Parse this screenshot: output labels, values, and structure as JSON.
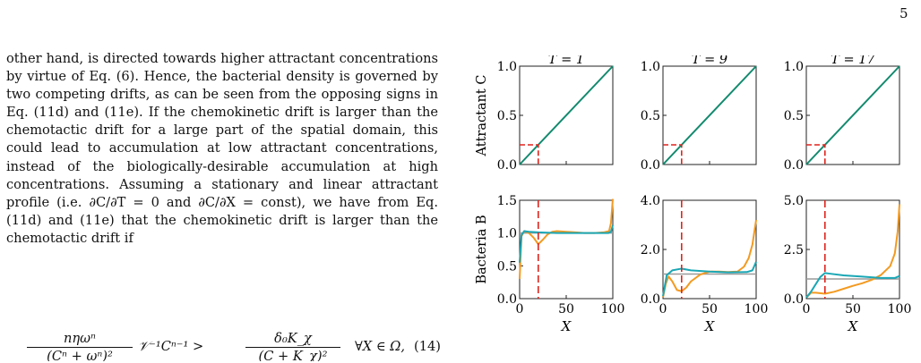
{
  "page_number": "5",
  "body_paragraph": "other hand, is directed towards higher attractant concentrations by virtue of Eq. (6). Hence, the bacterial density is governed by two competing drifts, as can be seen from the opposing signs in Eq. (11d) and (11e). If the chemokinetic drift is larger than the chemotactic drift for a large part of the spatial domain, this could lead to accumulation at low attractant concentrations, instead of the biologically-desirable accumulation at high concentrations. Assuming a stationary and linear attractant profile (i.e. ∂C/∂T = 0 and ∂C/∂X = const), we have from Eq. (11d) and (11e) that the chemokinetic drift is larger than the chemotactic drift if",
  "equation": {
    "lhs_num": "nηωⁿ",
    "lhs_den": "(Cⁿ + ωⁿ)²",
    "middle": "𝒱⁻¹Cⁿ⁻¹ >",
    "rhs_num": "δ₀K_χ",
    "rhs_den": "(C + K_χ)²",
    "condition": "∀X ∈ Ω,",
    "number": "(14)"
  },
  "figure": {
    "column_titles": [
      "T = 1",
      "T = 9",
      "T = 17"
    ],
    "row_labels": [
      "Attractant C",
      "Bacteria B"
    ],
    "xlabel": "X",
    "colors": {
      "attractant": "#128a6e",
      "orange": "#f39a21",
      "teal": "#1aa7b5",
      "gray": "#9a9a9a",
      "marker": "#e0241d"
    }
  },
  "chart_data": [
    {
      "type": "line",
      "title": "T = 1",
      "ylabel": "Attractant C",
      "xlim": [
        0,
        100
      ],
      "ylim": [
        0,
        1
      ],
      "xticks": [
        "0",
        "50",
        "100"
      ],
      "yticks": [
        "0.0",
        "0.5",
        "1.0"
      ],
      "x_tick_labels_shown": false,
      "series": [
        {
          "values": [
            [
              0,
              0
            ],
            [
              100,
              1
            ]
          ]
        }
      ],
      "marker": {
        "x": 20,
        "y": 0.2
      }
    },
    {
      "type": "line",
      "title": "T = 9",
      "xlim": [
        0,
        100
      ],
      "ylim": [
        0,
        1
      ],
      "xticks": [
        "0",
        "50",
        "100"
      ],
      "yticks": [
        "0.0",
        "0.5",
        "1.0"
      ],
      "x_tick_labels_shown": false,
      "series": [
        {
          "values": [
            [
              0,
              0
            ],
            [
              100,
              1
            ]
          ]
        }
      ],
      "marker": {
        "x": 20,
        "y": 0.2
      }
    },
    {
      "type": "line",
      "title": "T = 17",
      "xlim": [
        0,
        100
      ],
      "ylim": [
        0,
        1
      ],
      "xticks": [
        "0",
        "50",
        "100"
      ],
      "yticks": [
        "0.0",
        "0.5",
        "1.0"
      ],
      "x_tick_labels_shown": false,
      "series": [
        {
          "values": [
            [
              0,
              0
            ],
            [
              100,
              1
            ]
          ]
        }
      ],
      "marker": {
        "x": 20,
        "y": 0.2
      }
    },
    {
      "type": "line",
      "ylabel": "Bacteria B",
      "xlabel": "X",
      "xlim": [
        0,
        100
      ],
      "ylim": [
        0,
        1.5
      ],
      "xticks": [
        "0",
        "50",
        "100"
      ],
      "yticks": [
        "0.0",
        "0.5",
        "1.0",
        "1.5"
      ],
      "baseline": 1.0,
      "marker_x": 20,
      "series": [
        {
          "color": "orange",
          "values": [
            [
              0,
              0.3
            ],
            [
              2,
              0.95
            ],
            [
              5,
              1.03
            ],
            [
              10,
              1.0
            ],
            [
              15,
              0.93
            ],
            [
              20,
              0.83
            ],
            [
              25,
              0.9
            ],
            [
              30,
              0.98
            ],
            [
              35,
              1.02
            ],
            [
              40,
              1.03
            ],
            [
              50,
              1.02
            ],
            [
              60,
              1.01
            ],
            [
              70,
              1.0
            ],
            [
              80,
              1.0
            ],
            [
              90,
              1.01
            ],
            [
              96,
              1.03
            ],
            [
              98,
              1.15
            ],
            [
              100,
              1.52
            ]
          ]
        },
        {
          "color": "teal",
          "values": [
            [
              0,
              0.55
            ],
            [
              2,
              0.97
            ],
            [
              5,
              1.03
            ],
            [
              10,
              1.02
            ],
            [
              20,
              1.01
            ],
            [
              40,
              1.0
            ],
            [
              60,
              1.0
            ],
            [
              80,
              1.0
            ],
            [
              95,
              1.0
            ],
            [
              98,
              1.02
            ],
            [
              100,
              1.12
            ]
          ]
        }
      ]
    },
    {
      "type": "line",
      "xlabel": "X",
      "xlim": [
        0,
        100
      ],
      "ylim": [
        0,
        4
      ],
      "xticks": [
        "0",
        "50",
        "100"
      ],
      "yticks": [
        "0.0",
        "2.0",
        "4.0"
      ],
      "baseline": 1.0,
      "marker_x": 20,
      "series": [
        {
          "color": "orange",
          "values": [
            [
              0,
              0.05
            ],
            [
              3,
              0.6
            ],
            [
              6,
              0.9
            ],
            [
              10,
              0.7
            ],
            [
              15,
              0.35
            ],
            [
              20,
              0.3
            ],
            [
              25,
              0.45
            ],
            [
              30,
              0.7
            ],
            [
              40,
              0.98
            ],
            [
              50,
              1.1
            ],
            [
              60,
              1.1
            ],
            [
              70,
              1.08
            ],
            [
              80,
              1.1
            ],
            [
              87,
              1.3
            ],
            [
              92,
              1.65
            ],
            [
              96,
              2.2
            ],
            [
              100,
              3.2
            ]
          ]
        },
        {
          "color": "teal",
          "values": [
            [
              0,
              0.1
            ],
            [
              4,
              0.95
            ],
            [
              10,
              1.15
            ],
            [
              20,
              1.22
            ],
            [
              30,
              1.15
            ],
            [
              50,
              1.1
            ],
            [
              70,
              1.07
            ],
            [
              90,
              1.08
            ],
            [
              96,
              1.15
            ],
            [
              100,
              1.5
            ]
          ]
        }
      ]
    },
    {
      "type": "line",
      "xlabel": "X",
      "xlim": [
        0,
        100
      ],
      "ylim": [
        0,
        5
      ],
      "xticks": [
        "0",
        "50",
        "100"
      ],
      "yticks": [
        "0.0",
        "2.5",
        "5.0"
      ],
      "baseline": 1.0,
      "marker_x": 20,
      "series": [
        {
          "color": "orange",
          "values": [
            [
              0,
              0.05
            ],
            [
              5,
              0.3
            ],
            [
              10,
              0.3
            ],
            [
              20,
              0.25
            ],
            [
              30,
              0.35
            ],
            [
              40,
              0.5
            ],
            [
              50,
              0.65
            ],
            [
              60,
              0.78
            ],
            [
              70,
              0.95
            ],
            [
              80,
              1.2
            ],
            [
              90,
              1.65
            ],
            [
              95,
              2.3
            ],
            [
              98,
              3.4
            ],
            [
              100,
              4.8
            ]
          ]
        },
        {
          "color": "teal",
          "values": [
            [
              0,
              0.05
            ],
            [
              5,
              0.35
            ],
            [
              15,
              1.1
            ],
            [
              20,
              1.3
            ],
            [
              25,
              1.27
            ],
            [
              40,
              1.18
            ],
            [
              60,
              1.12
            ],
            [
              80,
              1.05
            ],
            [
              95,
              1.05
            ],
            [
              100,
              1.15
            ]
          ]
        }
      ]
    }
  ]
}
